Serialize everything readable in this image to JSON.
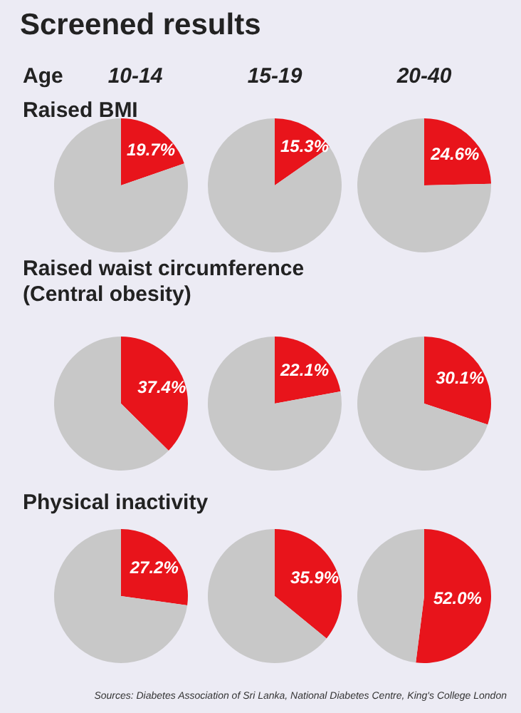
{
  "chart_data": [
    {
      "type": "other",
      "title": "Screened results",
      "annotations": [
        "Age",
        "10-14",
        "15-19",
        "20-40",
        "Sources: Diabetes Association of Sri Lanka, National Diabetes Centre, King's College London"
      ]
    },
    {
      "type": "pie",
      "title": "Raised BMI",
      "categories": [
        null,
        null
      ],
      "values": [
        19.7,
        80.3
      ],
      "colors": [
        "#e8141b",
        "#c8c8c8"
      ],
      "value_labels": [
        "19.7%",
        null
      ]
    },
    {
      "type": "pie",
      "categories": [
        null,
        null
      ],
      "values": [
        15.3,
        84.7
      ],
      "colors": [
        "#e8141b",
        "#c8c8c8"
      ],
      "value_labels": [
        "15.3%",
        null
      ]
    },
    {
      "type": "pie",
      "categories": [
        null,
        null
      ],
      "values": [
        24.6,
        75.4
      ],
      "colors": [
        "#e8141b",
        "#c8c8c8"
      ],
      "value_labels": [
        "24.6%",
        null
      ]
    },
    {
      "type": "pie",
      "title": "Raised waist circumference\n(Central obesity)",
      "categories": [
        null,
        null
      ],
      "values": [
        37.4,
        62.6
      ],
      "colors": [
        "#e8141b",
        "#c8c8c8"
      ],
      "value_labels": [
        "37.4%",
        null
      ]
    },
    {
      "type": "pie",
      "categories": [
        null,
        null
      ],
      "values": [
        22.1,
        77.9
      ],
      "colors": [
        "#e8141b",
        "#c8c8c8"
      ],
      "value_labels": [
        "22.1%",
        null
      ]
    },
    {
      "type": "pie",
      "categories": [
        null,
        null
      ],
      "values": [
        30.1,
        69.9
      ],
      "colors": [
        "#e8141b",
        "#c8c8c8"
      ],
      "value_labels": [
        "30.1%",
        null
      ]
    },
    {
      "type": "pie",
      "title": "Physical inactivity",
      "categories": [
        null,
        null
      ],
      "values": [
        27.2,
        72.8
      ],
      "colors": [
        "#e8141b",
        "#c8c8c8"
      ],
      "value_labels": [
        "27.2%",
        null
      ]
    },
    {
      "type": "pie",
      "categories": [
        null,
        null
      ],
      "values": [
        35.9,
        64.1
      ],
      "colors": [
        "#e8141b",
        "#c8c8c8"
      ],
      "value_labels": [
        "35.9%",
        null
      ]
    },
    {
      "type": "pie",
      "categories": [
        null,
        null
      ],
      "values": [
        52.0,
        48.0
      ],
      "colors": [
        "#e8141b",
        "#c8c8c8"
      ],
      "value_labels": [
        "52.0%",
        null
      ]
    }
  ]
}
